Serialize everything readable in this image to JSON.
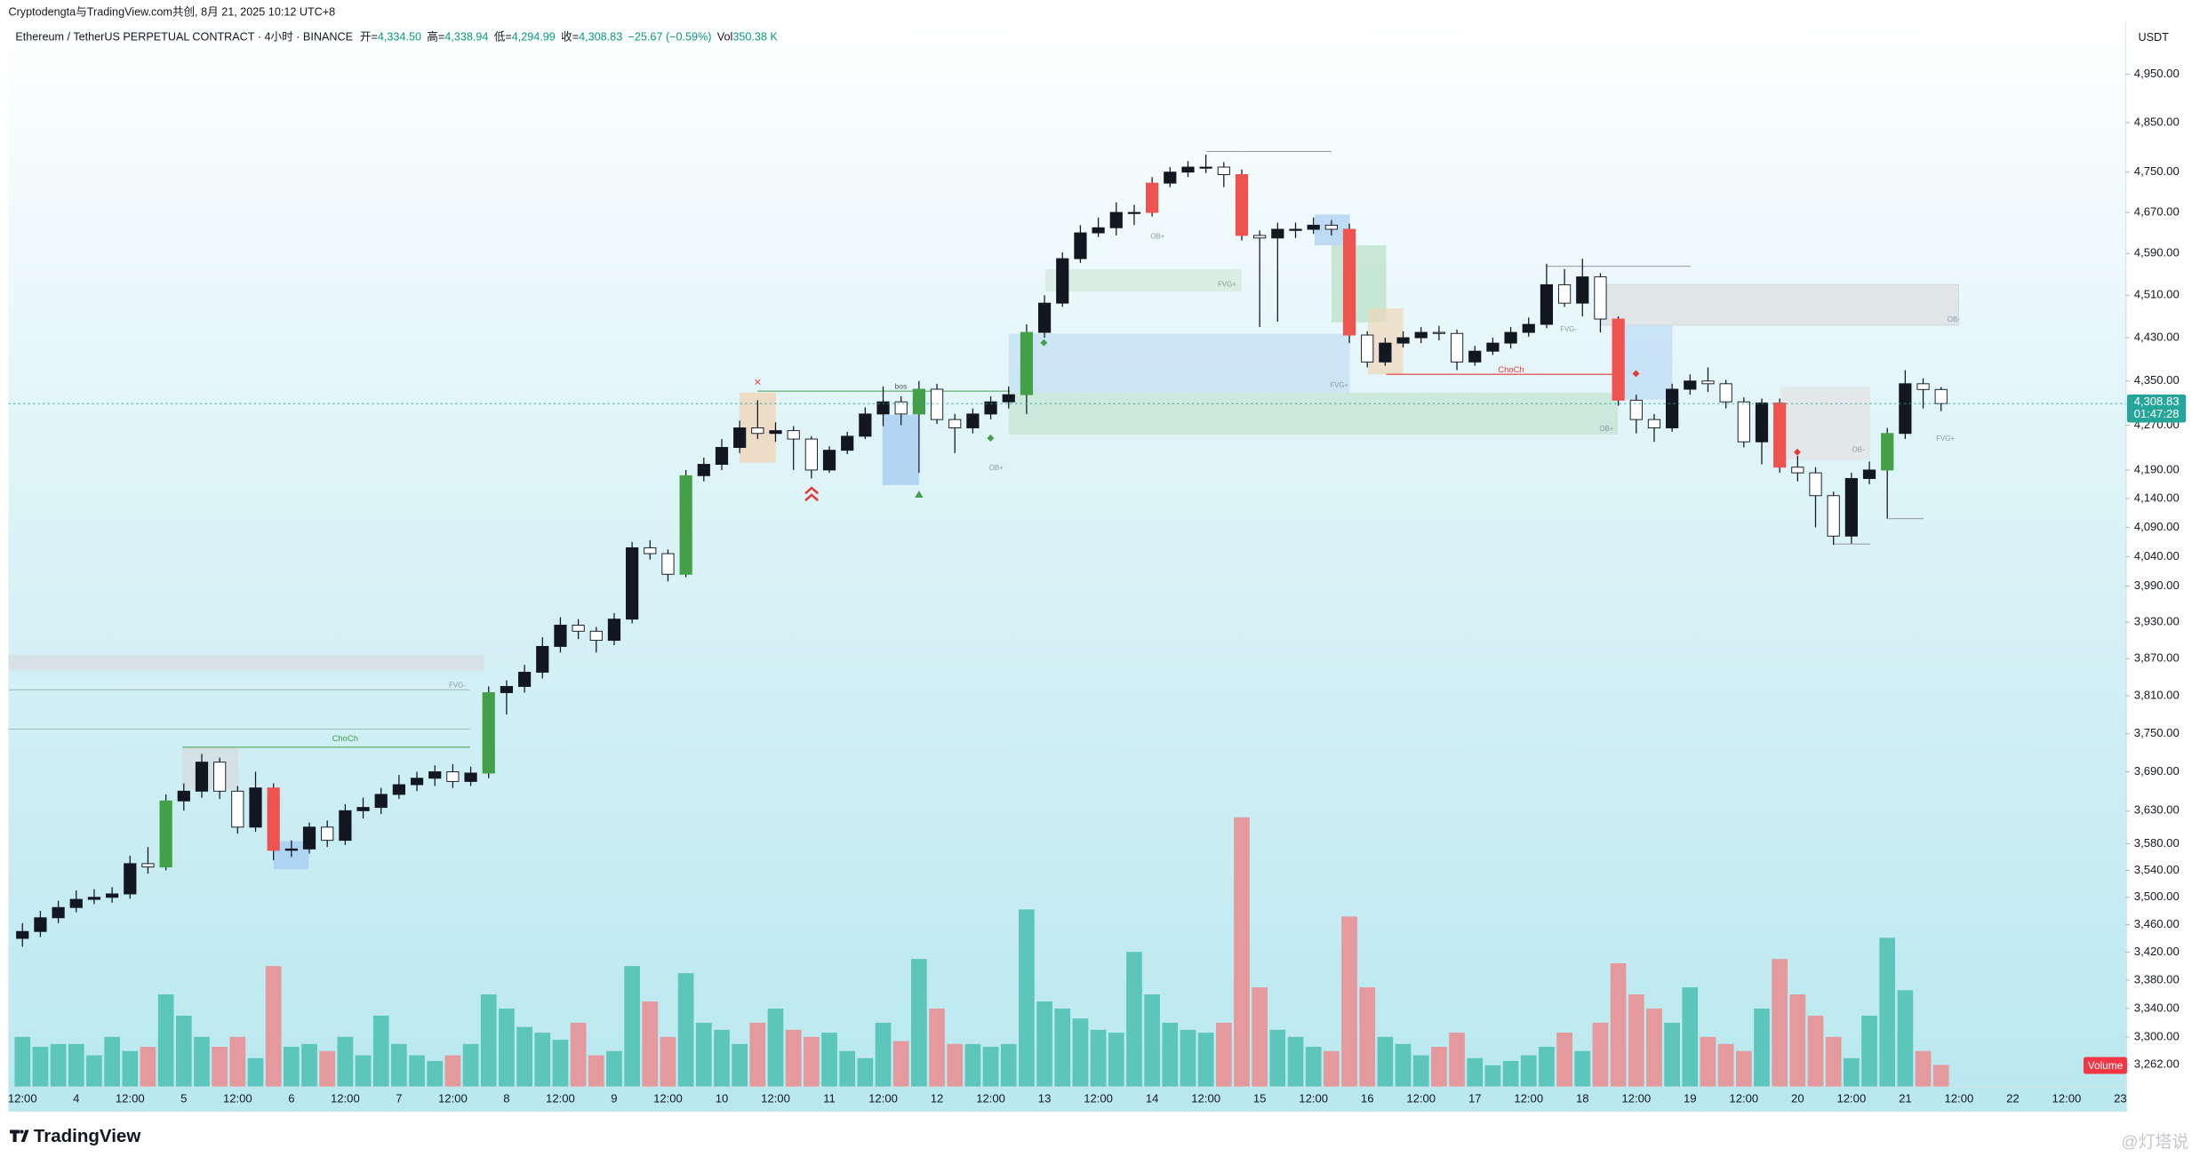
{
  "header": {
    "source": "Cryptodengta与TradingView.com共创, 8月 21, 2025 10:12 UTC+8",
    "symbol": "Ethereum / TetherUS PERPETUAL CONTRACT · 4小时 · BINANCE",
    "ohlc": [
      {
        "label": "开=",
        "value": "4,334.50"
      },
      {
        "label": "高=",
        "value": "4,338.94"
      },
      {
        "label": "低=",
        "value": "4,294.99"
      },
      {
        "label": "收=",
        "value": "4,308.83"
      }
    ],
    "change": "−25.67 (−0.59%)",
    "vol_label": "Vol",
    "vol_value": "350.38 K"
  },
  "footer": {
    "brand": "TradingView",
    "watermark": "@灯塔说"
  },
  "annotations": {
    "choch_1": "ChoCh",
    "choch_2": "ChoCh",
    "bos": "bos",
    "zones": [
      "OB-",
      "FVG+",
      "OB+",
      "FVG-",
      "OB+",
      "FVG+",
      "OB-",
      "FVG+",
      "OB+",
      "FVG-"
    ]
  },
  "chart_data": {
    "type": "candlestick",
    "currency": "USDT",
    "log": true,
    "ylim": [
      3232,
      5062
    ],
    "yticks": [
      {
        "value": 4950,
        "label": "4,950.00"
      },
      {
        "value": 4850,
        "label": "4,850.00"
      },
      {
        "value": 4750,
        "label": "4,750.00"
      },
      {
        "value": 4670,
        "label": "4,670.00"
      },
      {
        "value": 4590,
        "label": "4,590.00"
      },
      {
        "value": 4510,
        "label": "4,510.00"
      },
      {
        "value": 4430,
        "label": "4,430.00"
      },
      {
        "value": 4350,
        "label": "4,350.00"
      },
      {
        "value": 4270,
        "label": "4,270.00"
      },
      {
        "value": 4190,
        "label": "4,190.00"
      },
      {
        "value": 4140,
        "label": "4,140.00"
      },
      {
        "value": 4090,
        "label": "4,090.00"
      },
      {
        "value": 4040,
        "label": "4,040.00"
      },
      {
        "value": 3990,
        "label": "3,990.00"
      },
      {
        "value": 3930,
        "label": "3,930.00"
      },
      {
        "value": 3870,
        "label": "3,870.00"
      },
      {
        "value": 3810,
        "label": "3,810.00"
      },
      {
        "value": 3750,
        "label": "3,750.00"
      },
      {
        "value": 3690,
        "label": "3,690.00"
      },
      {
        "value": 3630,
        "label": "3,630.00"
      },
      {
        "value": 3580,
        "label": "3,580.00"
      },
      {
        "value": 3540,
        "label": "3,540.00"
      },
      {
        "value": 3500,
        "label": "3,500.00"
      },
      {
        "value": 3460,
        "label": "3,460.00"
      },
      {
        "value": 3420,
        "label": "3,420.00"
      },
      {
        "value": 3380,
        "label": "3,380.00"
      },
      {
        "value": 3340,
        "label": "3,340.00"
      },
      {
        "value": 3300,
        "label": "3,300.00"
      },
      {
        "value": 3262,
        "label": "3,262.00"
      }
    ],
    "xtick_labels": [
      "12:00",
      "4",
      "12:00",
      "5",
      "12:00",
      "6",
      "12:00",
      "7",
      "12:00",
      "8",
      "12:00",
      "9",
      "12:00",
      "10",
      "12:00",
      "11",
      "12:00",
      "12",
      "12:00",
      "13",
      "12:00",
      "14",
      "12:00",
      "15",
      "12:00",
      "16",
      "12:00",
      "17",
      "12:00",
      "18",
      "12:00",
      "19",
      "12:00",
      "20",
      "12:00",
      "21",
      "12:00",
      "22",
      "12:00",
      "23"
    ],
    "up_color": "#131722",
    "down_color": "#ffffff",
    "highlight": [
      {
        "color": "#43a047",
        "indices": [
          8,
          26,
          37,
          50,
          56,
          104
        ]
      },
      {
        "color": "#ef5350",
        "indices": [
          14,
          63,
          68,
          74,
          89,
          98
        ]
      }
    ],
    "last_price_label": "4,308.83",
    "countdown": "01:47:28",
    "price_line_color": "#26a69a",
    "candles": {
      "open": [
        3440,
        3450,
        3470,
        3485,
        3497,
        3500,
        3505,
        3550,
        3545,
        3645,
        3660,
        3705,
        3660,
        3605,
        3665,
        3570,
        3572,
        3605,
        3585,
        3630,
        3635,
        3655,
        3670,
        3680,
        3690,
        3675,
        3688,
        3815,
        3825,
        3848,
        3890,
        3925,
        3915,
        3900,
        3935,
        4055,
        4045,
        4010,
        4180,
        4200,
        4230,
        4265,
        4255,
        4260,
        4245,
        4190,
        4225,
        4250,
        4290,
        4312,
        4290,
        4335,
        4280,
        4265,
        4290,
        4312,
        4325,
        4440,
        4495,
        4580,
        4630,
        4640,
        4670,
        4670,
        4728,
        4750,
        4760,
        4760,
        4745,
        4625,
        4620,
        4637,
        4637,
        4645,
        4637,
        4435,
        4385,
        4420,
        4430,
        4440,
        4438,
        4385,
        4405,
        4420,
        4440,
        4455,
        4530,
        4495,
        4545,
        4465,
        4315,
        4280,
        4265,
        4335,
        4350,
        4345,
        4312,
        4240,
        4310,
        4195,
        4185,
        4145,
        4075,
        4175,
        4190,
        4255,
        4345,
        4334.5
      ],
      "high": [
        3462,
        3480,
        3495,
        3510,
        3512,
        3515,
        3562,
        3575,
        3655,
        3672,
        3718,
        3712,
        3668,
        3690,
        3672,
        3585,
        3612,
        3615,
        3640,
        3650,
        3665,
        3685,
        3690,
        3700,
        3702,
        3698,
        3825,
        3835,
        3860,
        3905,
        3938,
        3935,
        3922,
        3945,
        4065,
        4068,
        4052,
        4190,
        4212,
        4245,
        4278,
        4315,
        4275,
        4268,
        4250,
        4232,
        4258,
        4302,
        4340,
        4322,
        4350,
        4345,
        4290,
        4300,
        4322,
        4340,
        4455,
        4510,
        4592,
        4645,
        4660,
        4690,
        4685,
        4740,
        4760,
        4772,
        4785,
        4770,
        4755,
        4635,
        4650,
        4650,
        4660,
        4655,
        4648,
        4442,
        4430,
        4442,
        4450,
        4452,
        4445,
        4415,
        4430,
        4450,
        4468,
        4570,
        4560,
        4580,
        4552,
        4470,
        4325,
        4290,
        4345,
        4362,
        4375,
        4352,
        4320,
        4318,
        4318,
        4215,
        4195,
        4152,
        4185,
        4205,
        4265,
        4370,
        4355,
        4338.94
      ],
      "low": [
        3428,
        3442,
        3462,
        3478,
        3490,
        3492,
        3498,
        3535,
        3540,
        3630,
        3650,
        3648,
        3595,
        3598,
        3555,
        3560,
        3565,
        3575,
        3578,
        3618,
        3625,
        3648,
        3660,
        3668,
        3665,
        3668,
        3680,
        3780,
        3815,
        3838,
        3880,
        3902,
        3880,
        3892,
        3928,
        4035,
        3998,
        4005,
        4170,
        4190,
        4220,
        4245,
        4240,
        4190,
        4175,
        4185,
        4218,
        4245,
        4268,
        4270,
        4185,
        4272,
        4220,
        4255,
        4280,
        4300,
        4290,
        4430,
        4488,
        4572,
        4622,
        4625,
        4645,
        4662,
        4720,
        4740,
        4748,
        4720,
        4615,
        4450,
        4460,
        4620,
        4628,
        4625,
        4420,
        4375,
        4378,
        4412,
        4420,
        4425,
        4370,
        4378,
        4398,
        4410,
        4432,
        4448,
        4488,
        4470,
        4440,
        4305,
        4255,
        4240,
        4258,
        4325,
        4330,
        4300,
        4230,
        4200,
        4185,
        4170,
        4090,
        4060,
        4062,
        4165,
        4105,
        4245,
        4300,
        4294.99
      ],
      "close": [
        3450,
        3470,
        3485,
        3497,
        3500,
        3505,
        3550,
        3545,
        3645,
        3660,
        3705,
        3660,
        3605,
        3665,
        3570,
        3572,
        3605,
        3585,
        3630,
        3635,
        3655,
        3670,
        3680,
        3690,
        3675,
        3688,
        3815,
        3825,
        3848,
        3890,
        3925,
        3915,
        3900,
        3935,
        4055,
        4045,
        4010,
        4180,
        4200,
        4230,
        4265,
        4255,
        4260,
        4245,
        4190,
        4225,
        4250,
        4290,
        4312,
        4290,
        4335,
        4280,
        4265,
        4290,
        4312,
        4325,
        4440,
        4495,
        4580,
        4630,
        4640,
        4670,
        4670,
        4728,
        4750,
        4760,
        4760,
        4745,
        4625,
        4620,
        4637,
        4637,
        4645,
        4637,
        4435,
        4385,
        4420,
        4430,
        4440,
        4438,
        4385,
        4405,
        4420,
        4440,
        4455,
        4530,
        4495,
        4545,
        4465,
        4315,
        4280,
        4265,
        4335,
        4350,
        4345,
        4312,
        4240,
        4310,
        4195,
        4185,
        4145,
        4075,
        4175,
        4190,
        4255,
        4345,
        4334.5,
        4308.83
      ]
    },
    "volume": {
      "label": "Volume",
      "up_color": "#5cc6bd",
      "down_color": "#e49a9c",
      "values": [
        805000,
        644000,
        690000,
        690000,
        506000,
        805000,
        575000,
        644000,
        1495000,
        1150000,
        805000,
        644000,
        805000,
        460000,
        1955000,
        644000,
        690000,
        575000,
        805000,
        506000,
        1150000,
        690000,
        506000,
        414000,
        506000,
        690000,
        1495000,
        1265000,
        966000,
        874000,
        759000,
        1035000,
        506000,
        575000,
        1955000,
        1380000,
        805000,
        1840000,
        1035000,
        920000,
        690000,
        1035000,
        1265000,
        920000,
        805000,
        874000,
        575000,
        460000,
        1035000,
        736000,
        2070000,
        1265000,
        690000,
        690000,
        644000,
        690000,
        2875000,
        1380000,
        1265000,
        1104000,
        920000,
        874000,
        2185000,
        1495000,
        1035000,
        920000,
        874000,
        1035000,
        4370000,
        1610000,
        920000,
        805000,
        644000,
        575000,
        2760000,
        1610000,
        805000,
        690000,
        506000,
        644000,
        874000,
        460000,
        345000,
        414000,
        506000,
        644000,
        874000,
        575000,
        1035000,
        2001000,
        1495000,
        1265000,
        1035000,
        1610000,
        805000,
        690000,
        575000,
        1265000,
        2070000,
        1495000,
        1150000,
        805000,
        460000,
        1150000,
        2415000,
        1564000,
        575000,
        350380
      ]
    }
  }
}
